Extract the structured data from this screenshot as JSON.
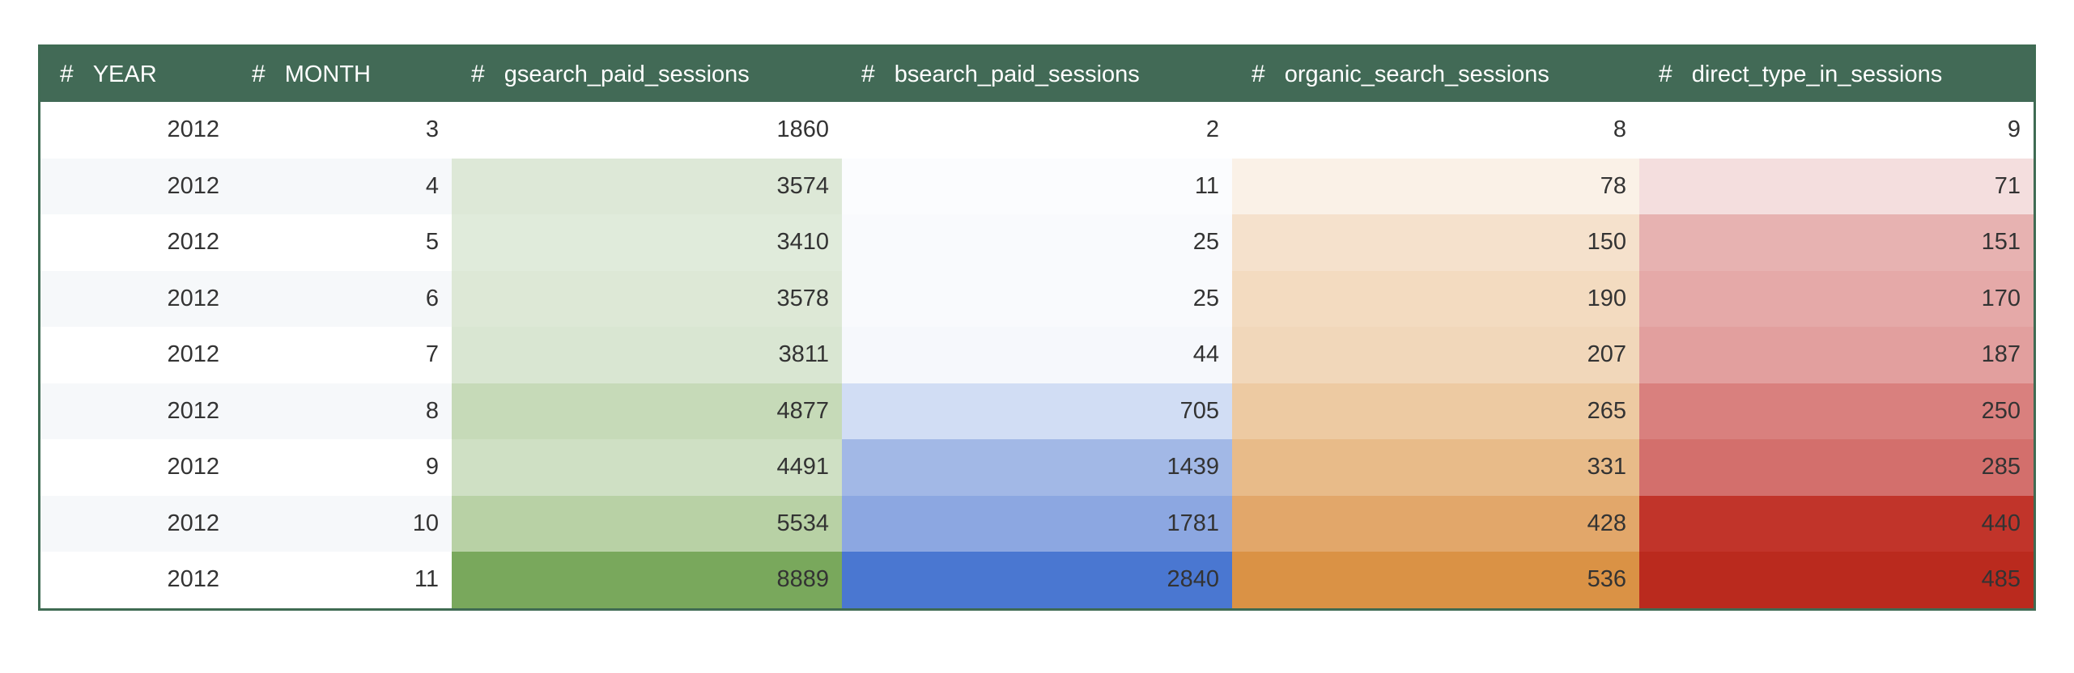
{
  "table": {
    "columns": [
      {
        "hash": "#",
        "label": "YEAR"
      },
      {
        "hash": "#",
        "label": "MONTH"
      },
      {
        "hash": "#",
        "label": "gsearch_paid_sessions"
      },
      {
        "hash": "#",
        "label": "bsearch_paid_sessions"
      },
      {
        "hash": "#",
        "label": "organic_search_sessions"
      },
      {
        "hash": "#",
        "label": "direct_type_in_sessions"
      }
    ],
    "rows": [
      {
        "year": "2012",
        "month": "3",
        "gsearch": "1860",
        "bsearch": "2",
        "organic": "8",
        "direct": "9"
      },
      {
        "year": "2012",
        "month": "4",
        "gsearch": "3574",
        "bsearch": "11",
        "organic": "78",
        "direct": "71"
      },
      {
        "year": "2012",
        "month": "5",
        "gsearch": "3410",
        "bsearch": "25",
        "organic": "150",
        "direct": "151"
      },
      {
        "year": "2012",
        "month": "6",
        "gsearch": "3578",
        "bsearch": "25",
        "organic": "190",
        "direct": "170"
      },
      {
        "year": "2012",
        "month": "7",
        "gsearch": "3811",
        "bsearch": "44",
        "organic": "207",
        "direct": "187"
      },
      {
        "year": "2012",
        "month": "8",
        "gsearch": "4877",
        "bsearch": "705",
        "organic": "265",
        "direct": "250"
      },
      {
        "year": "2012",
        "month": "9",
        "gsearch": "4491",
        "bsearch": "1439",
        "organic": "331",
        "direct": "285"
      },
      {
        "year": "2012",
        "month": "10",
        "gsearch": "5534",
        "bsearch": "1781",
        "organic": "428",
        "direct": "440"
      },
      {
        "year": "2012",
        "month": "11",
        "gsearch": "8889",
        "bsearch": "2840",
        "organic": "536",
        "direct": "485"
      }
    ],
    "cell_colors": {
      "gsearch": [
        "#ffffff",
        "#dde8d7",
        "#e0ebdb",
        "#dde8d6",
        "#d9e6d2",
        "#c6dab8",
        "#cfe0c4",
        "#b8d1a5",
        "#79a85c"
      ],
      "bsearch": [
        "#ffffff",
        "#fbfcfe",
        "#f9fafd",
        "#f9fafd",
        "#f6f8fc",
        "#d1ddf4",
        "#a2b8e6",
        "#8ca7e1",
        "#4a77d1"
      ],
      "organic": [
        "#ffffff",
        "#faf1e7",
        "#f5e1cc",
        "#f3dbc0",
        "#f1d7ba",
        "#edcaa2",
        "#e8bb89",
        "#e2a76a",
        "#da9245"
      ],
      "direct": [
        "#ffffff",
        "#f4dede",
        "#e7b2b1",
        "#e5a9a8",
        "#e29f9e",
        "#d9807e",
        "#d36f6c",
        "#c1342a",
        "#ba2a1e"
      ]
    }
  }
}
